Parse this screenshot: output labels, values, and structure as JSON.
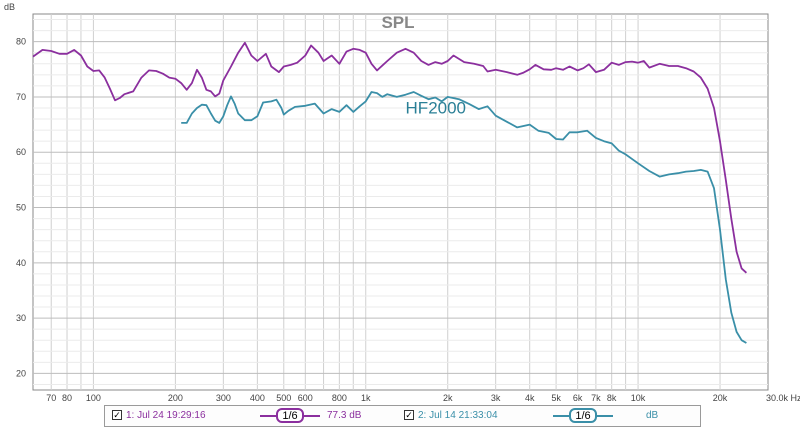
{
  "chart_data": {
    "type": "line",
    "title": "SPL",
    "ylabel": "dB",
    "xlabel": "30.0k Hz",
    "x_scale": "log",
    "xlim": [
      60,
      30000
    ],
    "ylim": [
      17,
      85
    ],
    "grid": true,
    "y_ticks": [
      "80",
      "70",
      "60",
      "50",
      "40",
      "30",
      "20"
    ],
    "x_ticks": [
      {
        "v": 70,
        "label": "70"
      },
      {
        "v": 80,
        "label": "80"
      },
      {
        "v": 100,
        "label": "100"
      },
      {
        "v": 200,
        "label": "200"
      },
      {
        "v": 300,
        "label": "300"
      },
      {
        "v": 400,
        "label": "400"
      },
      {
        "v": 500,
        "label": "500"
      },
      {
        "v": 600,
        "label": "600"
      },
      {
        "v": 800,
        "label": "800"
      },
      {
        "v": 1000,
        "label": "1k"
      },
      {
        "v": 2000,
        "label": "2k"
      },
      {
        "v": 3000,
        "label": "3k"
      },
      {
        "v": 4000,
        "label": "4k"
      },
      {
        "v": 5000,
        "label": "5k"
      },
      {
        "v": 6000,
        "label": "6k"
      },
      {
        "v": 7000,
        "label": "7k"
      },
      {
        "v": 8000,
        "label": "8k"
      },
      {
        "v": 10000,
        "label": "10k"
      },
      {
        "v": 20000,
        "label": "20k"
      }
    ],
    "annotations": [
      {
        "text": "HF2000",
        "x": 1400,
        "y": 67
      }
    ],
    "series": [
      {
        "color": "#8b2f9e",
        "points": [
          [
            60,
            77.3
          ],
          [
            65,
            78.5
          ],
          [
            70,
            78.3
          ],
          [
            75,
            77.8
          ],
          [
            80,
            77.8
          ],
          [
            85,
            78.5
          ],
          [
            90,
            77.5
          ],
          [
            95,
            75.5
          ],
          [
            100,
            74.7
          ],
          [
            105,
            74.8
          ],
          [
            110,
            73.5
          ],
          [
            115,
            71.5
          ],
          [
            120,
            69.4
          ],
          [
            125,
            69.8
          ],
          [
            130,
            70.5
          ],
          [
            140,
            71
          ],
          [
            150,
            73.5
          ],
          [
            160,
            74.8
          ],
          [
            170,
            74.7
          ],
          [
            180,
            74.2
          ],
          [
            190,
            73.5
          ],
          [
            200,
            73.3
          ],
          [
            210,
            72.5
          ],
          [
            220,
            71.3
          ],
          [
            230,
            72.5
          ],
          [
            240,
            74.9
          ],
          [
            250,
            73.5
          ],
          [
            260,
            71.3
          ],
          [
            270,
            71
          ],
          [
            280,
            70.1
          ],
          [
            290,
            70.6
          ],
          [
            300,
            73
          ],
          [
            320,
            75.5
          ],
          [
            340,
            78
          ],
          [
            360,
            79.8
          ],
          [
            380,
            77.5
          ],
          [
            400,
            76.5
          ],
          [
            430,
            77.8
          ],
          [
            450,
            75.5
          ],
          [
            480,
            74.5
          ],
          [
            500,
            75.5
          ],
          [
            530,
            75.8
          ],
          [
            560,
            76.2
          ],
          [
            600,
            77.5
          ],
          [
            630,
            79.3
          ],
          [
            670,
            78
          ],
          [
            700,
            76.5
          ],
          [
            750,
            77.5
          ],
          [
            800,
            76
          ],
          [
            850,
            78.2
          ],
          [
            900,
            78.7
          ],
          [
            950,
            78.5
          ],
          [
            1000,
            78
          ],
          [
            1050,
            76
          ],
          [
            1100,
            74.8
          ],
          [
            1200,
            76.5
          ],
          [
            1300,
            78
          ],
          [
            1400,
            78.7
          ],
          [
            1500,
            78
          ],
          [
            1600,
            76.5
          ],
          [
            1700,
            75.8
          ],
          [
            1800,
            76.3
          ],
          [
            1900,
            76
          ],
          [
            2000,
            76.5
          ],
          [
            2100,
            77.5
          ],
          [
            2300,
            76.3
          ],
          [
            2500,
            76
          ],
          [
            2700,
            75.6
          ],
          [
            2800,
            74.6
          ],
          [
            3000,
            74.9
          ],
          [
            3300,
            74.5
          ],
          [
            3600,
            74
          ],
          [
            3800,
            74.4
          ],
          [
            4000,
            75
          ],
          [
            4200,
            75.8
          ],
          [
            4500,
            75
          ],
          [
            4800,
            74.9
          ],
          [
            5000,
            75.2
          ],
          [
            5300,
            74.9
          ],
          [
            5600,
            75.5
          ],
          [
            6000,
            74.8
          ],
          [
            6300,
            75.2
          ],
          [
            6600,
            75.9
          ],
          [
            7000,
            74.5
          ],
          [
            7500,
            74.9
          ],
          [
            8000,
            76.2
          ],
          [
            8500,
            75.8
          ],
          [
            9000,
            76.3
          ],
          [
            9500,
            76.4
          ],
          [
            10000,
            76.2
          ],
          [
            10500,
            76.5
          ],
          [
            11000,
            75.3
          ],
          [
            12000,
            76
          ],
          [
            13000,
            75.6
          ],
          [
            14000,
            75.6
          ],
          [
            15000,
            75.2
          ],
          [
            16000,
            74.6
          ],
          [
            17000,
            73.5
          ],
          [
            18000,
            71.5
          ],
          [
            19000,
            68
          ],
          [
            20000,
            62
          ],
          [
            21000,
            55
          ],
          [
            22000,
            48
          ],
          [
            23000,
            42
          ],
          [
            24000,
            39
          ],
          [
            25000,
            38.2
          ]
        ]
      },
      {
        "color": "#3a8fa8",
        "points": [
          [
            210,
            65.3
          ],
          [
            220,
            65.3
          ],
          [
            230,
            67
          ],
          [
            240,
            68
          ],
          [
            250,
            68.6
          ],
          [
            260,
            68.5
          ],
          [
            270,
            67
          ],
          [
            280,
            65.7
          ],
          [
            290,
            65.3
          ],
          [
            300,
            66.5
          ],
          [
            310,
            68.5
          ],
          [
            320,
            70.1
          ],
          [
            330,
            68.8
          ],
          [
            340,
            67
          ],
          [
            360,
            65.8
          ],
          [
            380,
            65.8
          ],
          [
            400,
            66.5
          ],
          [
            420,
            69
          ],
          [
            450,
            69.2
          ],
          [
            470,
            69.5
          ],
          [
            490,
            68
          ],
          [
            500,
            66.8
          ],
          [
            520,
            67.5
          ],
          [
            550,
            68.2
          ],
          [
            600,
            68.4
          ],
          [
            650,
            68.8
          ],
          [
            700,
            67
          ],
          [
            750,
            67.8
          ],
          [
            800,
            67.3
          ],
          [
            850,
            68.5
          ],
          [
            900,
            67.3
          ],
          [
            950,
            68.3
          ],
          [
            1000,
            69.2
          ],
          [
            1050,
            70.9
          ],
          [
            1100,
            70.7
          ],
          [
            1150,
            70
          ],
          [
            1200,
            70.5
          ],
          [
            1300,
            70
          ],
          [
            1400,
            70.4
          ],
          [
            1500,
            70.9
          ],
          [
            1600,
            70.2
          ],
          [
            1700,
            69.6
          ],
          [
            1800,
            69.9
          ],
          [
            1900,
            69.2
          ],
          [
            2000,
            70
          ],
          [
            2200,
            69.6
          ],
          [
            2400,
            68.7
          ],
          [
            2600,
            67.8
          ],
          [
            2800,
            68.3
          ],
          [
            3000,
            66.6
          ],
          [
            3300,
            65.5
          ],
          [
            3600,
            64.5
          ],
          [
            4000,
            65
          ],
          [
            4300,
            63.9
          ],
          [
            4700,
            63.5
          ],
          [
            5000,
            62.4
          ],
          [
            5300,
            62.3
          ],
          [
            5600,
            63.6
          ],
          [
            6000,
            63.6
          ],
          [
            6500,
            63.9
          ],
          [
            7000,
            62.6
          ],
          [
            7500,
            62
          ],
          [
            8000,
            61.6
          ],
          [
            8500,
            60.3
          ],
          [
            9000,
            59.6
          ],
          [
            10000,
            58
          ],
          [
            11000,
            56.6
          ],
          [
            12000,
            55.6
          ],
          [
            13000,
            56
          ],
          [
            14000,
            56.2
          ],
          [
            15000,
            56.5
          ],
          [
            16000,
            56.6
          ],
          [
            17000,
            56.8
          ],
          [
            18000,
            56.5
          ],
          [
            19000,
            53.5
          ],
          [
            20000,
            46
          ],
          [
            21000,
            37
          ],
          [
            22000,
            31
          ],
          [
            23000,
            27.5
          ],
          [
            24000,
            26
          ],
          [
            25000,
            25.5
          ]
        ]
      }
    ]
  },
  "legend": {
    "items": [
      {
        "label": "1: Jul 24 19:29:16",
        "smoothing": "1/6",
        "value": "77.3 dB",
        "color": "#8b2f9e"
      },
      {
        "label": "2: Jul 14 21:33:04",
        "smoothing": "1/6",
        "value": "dB",
        "color": "#3a8fa8"
      }
    ]
  }
}
